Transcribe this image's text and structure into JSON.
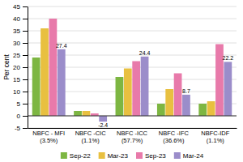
{
  "chart_data": {
    "type": "bar",
    "categories": [
      "NBFC - MFI\n(3.5%)",
      "NBFC -CIC\n(1.1%)",
      "NBFC -ICC\n(57.7%)",
      "NBFC -IFC\n(36.6%)",
      "NBFC-IDF\n(1.1%)"
    ],
    "series": [
      {
        "name": "Sep-22",
        "color": "#7db642",
        "values": [
          24.0,
          2.0,
          16.0,
          5.0,
          5.0
        ]
      },
      {
        "name": "Mar-23",
        "color": "#e8c040",
        "values": [
          36.0,
          2.0,
          19.5,
          11.0,
          6.0
        ]
      },
      {
        "name": "Sep-23",
        "color": "#e87aaa",
        "values": [
          40.0,
          1.0,
          22.5,
          17.5,
          29.5
        ]
      },
      {
        "name": "Mar-24",
        "color": "#9b8dca",
        "values": [
          27.4,
          -2.4,
          24.4,
          8.7,
          22.2
        ],
        "data_labels": true
      }
    ],
    "ylabel": "Per cent",
    "ylim": [
      -5,
      45
    ],
    "yticks": [
      -5,
      0,
      5,
      10,
      15,
      20,
      25,
      30,
      35,
      40,
      45
    ],
    "grid": true,
    "legend": "bottom"
  }
}
